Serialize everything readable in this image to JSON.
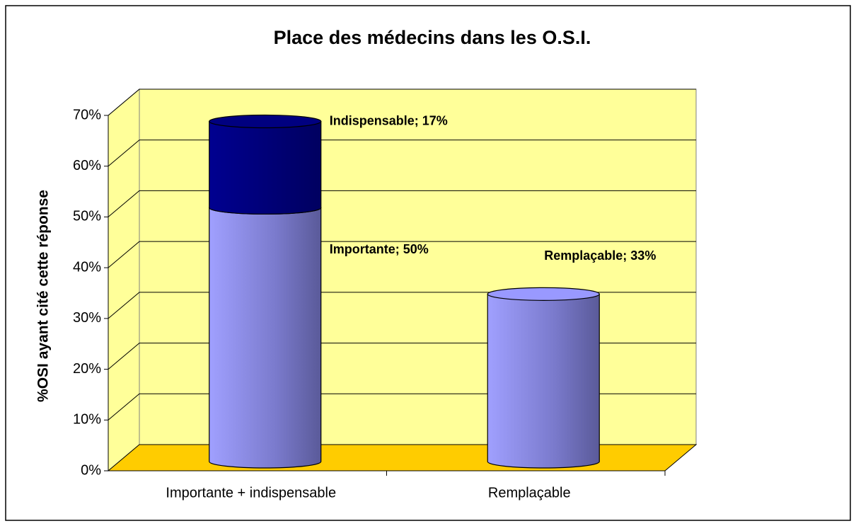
{
  "chart_data": {
    "type": "bar3d-stacked",
    "title": "Place des médecins dans les O.S.I.",
    "y_label": "%OSI ayant cité cette réponse",
    "categories": [
      "Importante + indispensable",
      "Remplaçable"
    ],
    "series": [
      {
        "name": "Importante",
        "color": "#9999ff",
        "values": [
          50,
          null
        ],
        "value_labels": [
          "Importante; 50%",
          null
        ]
      },
      {
        "name": "Indispensable",
        "color": "#000080",
        "values": [
          17,
          null
        ],
        "value_labels": [
          "Indispensable; 17%",
          null
        ]
      },
      {
        "name": "Remplaçable",
        "color": "#9999ff",
        "values": [
          null,
          33
        ],
        "value_labels": [
          null,
          "Remplaçable; 33%"
        ]
      }
    ],
    "ylim": [
      0,
      70
    ],
    "yticks": [
      {
        "value": 0,
        "label": "0%"
      },
      {
        "value": 10,
        "label": "10%"
      },
      {
        "value": 20,
        "label": "20%"
      },
      {
        "value": 30,
        "label": "30%"
      },
      {
        "value": 40,
        "label": "40%"
      },
      {
        "value": 50,
        "label": "50%"
      },
      {
        "value": 60,
        "label": "60%"
      },
      {
        "value": 70,
        "label": "70%"
      }
    ],
    "grid": true,
    "wall_color": "#ffff99",
    "floor_color": "#ffcc00"
  }
}
